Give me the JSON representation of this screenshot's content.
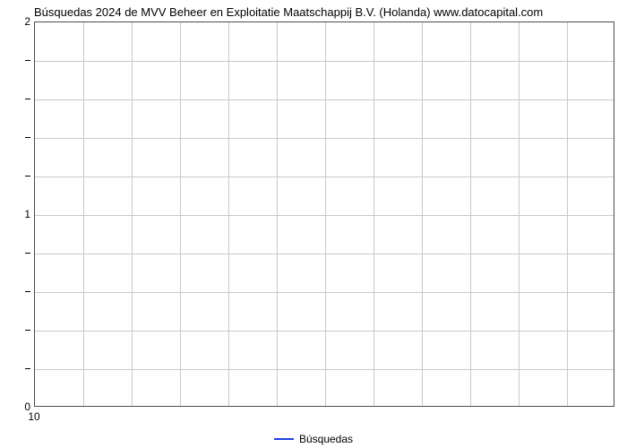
{
  "chart": {
    "type": "line",
    "title": "Búsquedas 2024 de MVV Beheer en Exploitatie Maatschappij B.V. (Holanda) www.datocapital.com",
    "title_fontsize": 13,
    "background_color": "#ffffff",
    "grid_color": "#c9c9c9",
    "border_color": "#4d4d4d",
    "xlim": [
      10,
      10
    ],
    "ylim": [
      0,
      2
    ],
    "x_ticks": [
      10
    ],
    "y_major_ticks": [
      0,
      1,
      2
    ],
    "y_minor_tick_count": 4,
    "x_grid_divisions": 12,
    "y_grid_divisions": 10,
    "series": {
      "name": "Búsquedas",
      "color": "#2040e0",
      "x": [],
      "y": []
    },
    "legend": {
      "label": "Búsquedas",
      "line_color": "#2040e0",
      "position": "bottom-center"
    },
    "tick_fontsize": 12
  }
}
